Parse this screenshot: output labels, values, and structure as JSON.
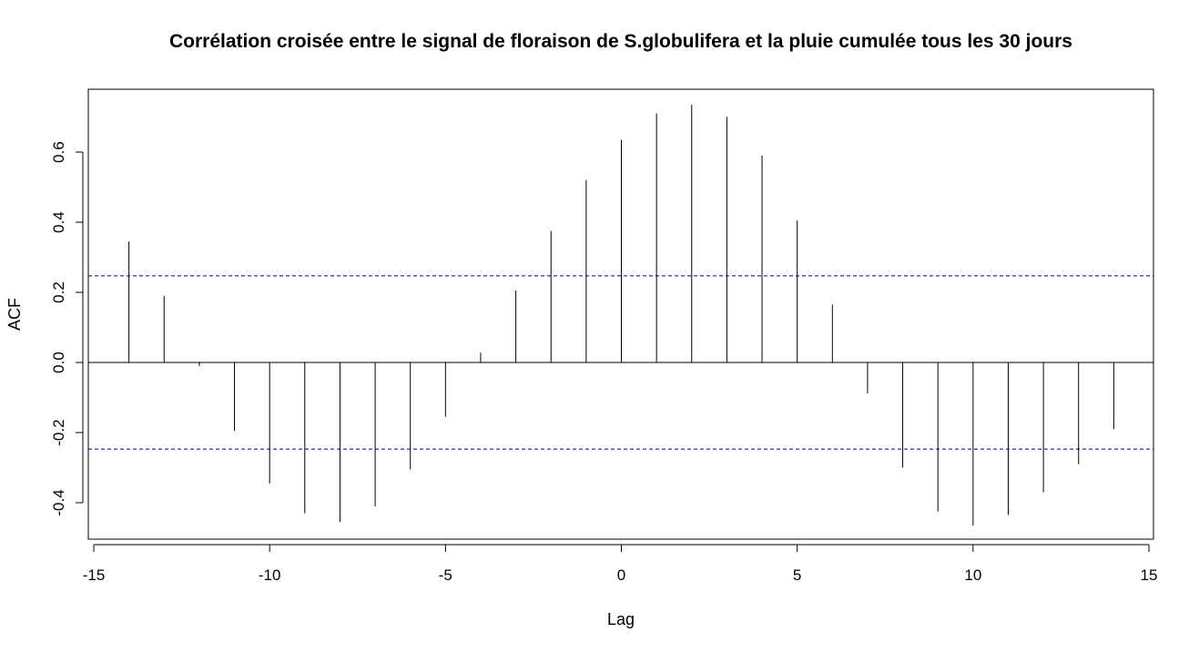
{
  "chart_data": {
    "type": "bar",
    "title": "Corrélation croisée entre le signal de floraison de S.globulifera et la pluie cumulée tous les 30 jours",
    "xlabel": "Lag",
    "ylabel": "ACF",
    "xlim": [
      -15,
      15
    ],
    "ylim": [
      -0.5,
      0.75
    ],
    "x_ticks": [
      -15,
      -10,
      -5,
      0,
      5,
      10,
      15
    ],
    "y_ticks": [
      -0.4,
      -0.2,
      0.0,
      0.2,
      0.4,
      0.6
    ],
    "x_tick_labels": [
      "-15",
      "-10",
      "-5",
      "0",
      "5",
      "10",
      "15"
    ],
    "y_tick_labels": [
      "-0.4",
      "-0.2",
      "0.0",
      "0.2",
      "0.4",
      "0.6"
    ],
    "confidence_bounds": [
      0.247,
      -0.247
    ],
    "lags": [
      -14,
      -13,
      -12,
      -11,
      -10,
      -9,
      -8,
      -7,
      -6,
      -5,
      -4,
      -3,
      -2,
      -1,
      0,
      1,
      2,
      3,
      4,
      5,
      6,
      7,
      8,
      9,
      10,
      11,
      12,
      13,
      14
    ],
    "values": [
      0.345,
      0.19,
      -0.01,
      -0.195,
      -0.345,
      -0.43,
      -0.455,
      -0.41,
      -0.305,
      -0.155,
      0.028,
      0.205,
      0.375,
      0.52,
      0.635,
      0.71,
      0.735,
      0.7,
      0.59,
      0.405,
      0.165,
      -0.088,
      -0.3,
      -0.425,
      -0.465,
      -0.435,
      -0.37,
      -0.29,
      -0.19
    ],
    "grid": false,
    "colors": {
      "lines": "#000000",
      "bounds": "#00008b"
    }
  }
}
